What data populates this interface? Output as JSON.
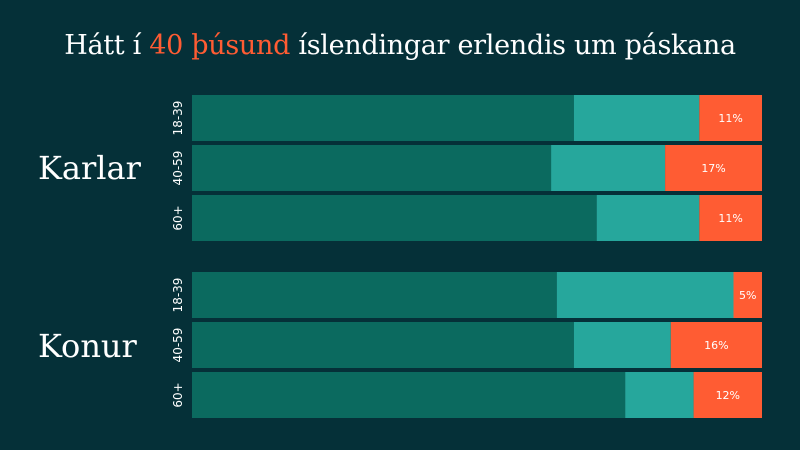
{
  "title": {
    "before": "Hátt í ",
    "highlight": "40 þúsund",
    "after": " íslendingar erlendis um páskana"
  },
  "colors": {
    "background": "#053038",
    "seg1": "#0b6a5f",
    "seg2": "#26a79c",
    "seg3": "#ff5c33",
    "highlight": "#ff5c33"
  },
  "chart_data": {
    "type": "bar",
    "orientation": "horizontal",
    "stacked": true,
    "xlim": [
      0,
      100
    ],
    "groups": [
      {
        "name": "Karlar",
        "rows": [
          {
            "category": "18-39",
            "values": [
              67,
              22,
              11
            ],
            "label": "11%"
          },
          {
            "category": "40-59",
            "values": [
              63,
              20,
              17
            ],
            "label": "17%"
          },
          {
            "category": "60+",
            "values": [
              71,
              18,
              11
            ],
            "label": "11%"
          }
        ]
      },
      {
        "name": "Konur",
        "rows": [
          {
            "category": "18-39",
            "values": [
              64,
              31,
              5
            ],
            "label": "5%"
          },
          {
            "category": "40-59",
            "values": [
              67,
              17,
              16
            ],
            "label": "16%"
          },
          {
            "category": "60+",
            "values": [
              76,
              12,
              12
            ],
            "label": "12%"
          }
        ]
      }
    ]
  }
}
